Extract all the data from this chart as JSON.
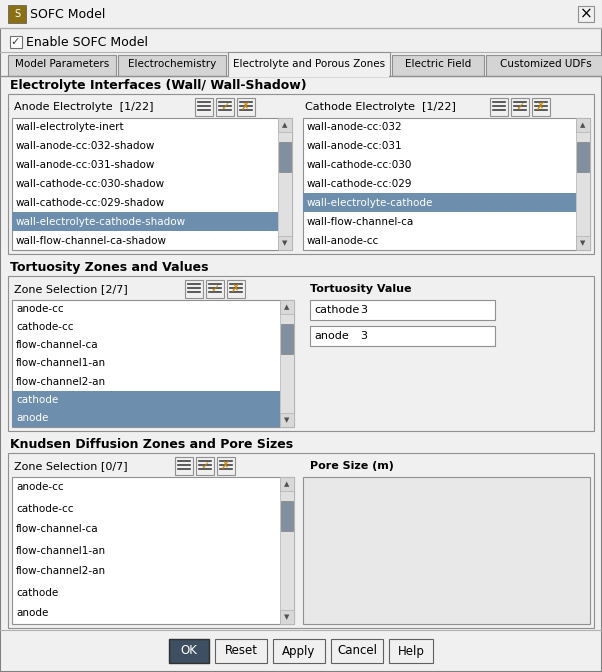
{
  "title": "SOFC Model",
  "checkbox_label": "Enable SOFC Model",
  "tabs": [
    "Model Parameters",
    "Electrochemistry",
    "Electrolyte and Porous Zones",
    "Electric Field",
    "Customized UDFs"
  ],
  "active_tab_idx": 2,
  "section1_title": "Electrolyte Interfaces (Wall/ Wall-Shadow)",
  "anode_label": "Anode Electrolyte  [1/22]",
  "cathode_label": "Cathode Electrolyte  [1/22]",
  "anode_items": [
    "wall-electrolyte-inert",
    "wall-anode-cc:032-shadow",
    "wall-anode-cc:031-shadow",
    "wall-cathode-cc:030-shadow",
    "wall-cathode-cc:029-shadow",
    "wall-electrolyte-cathode-shadow",
    "wall-flow-channel-ca-shadow"
  ],
  "anode_selected_idx": 5,
  "cathode_items": [
    "wall-anode-cc:032",
    "wall-anode-cc:031",
    "wall-cathode-cc:030",
    "wall-cathode-cc:029",
    "wall-electrolyte-cathode",
    "wall-flow-channel-ca",
    "wall-anode-cc"
  ],
  "cathode_selected_idx": 4,
  "section2_title": "Tortuosity Zones and Values",
  "zone_sel_label": "Zone Selection [2/7]",
  "tortuosity_label": "Tortuosity Value",
  "tortuosity_items": [
    "anode-cc",
    "cathode-cc",
    "flow-channel-ca",
    "flow-channel1-an",
    "flow-channel2-an",
    "cathode",
    "anode"
  ],
  "tortuosity_selected": [
    5,
    6
  ],
  "cathode_tort_label": "cathode",
  "cathode_tort_val": "3",
  "anode_tort_label": "anode",
  "anode_tort_val": "3",
  "section3_title": "Knudsen Diffusion Zones and Pore Sizes",
  "kn_zone_label": "Zone Selection [0/7]",
  "pore_size_label": "Pore Size (m)",
  "kn_items": [
    "anode-cc",
    "cathode-cc",
    "flow-channel-ca",
    "flow-channel1-an",
    "flow-channel2-an",
    "cathode",
    "anode"
  ],
  "buttons": [
    "OK",
    "Reset",
    "Apply",
    "Cancel",
    "Help"
  ],
  "selected_color": "#6d8fad",
  "ok_button_bg": "#3d4f60",
  "scrollbar_thumb": "#8090a0",
  "scrollbar_track": "#d8d8d8"
}
